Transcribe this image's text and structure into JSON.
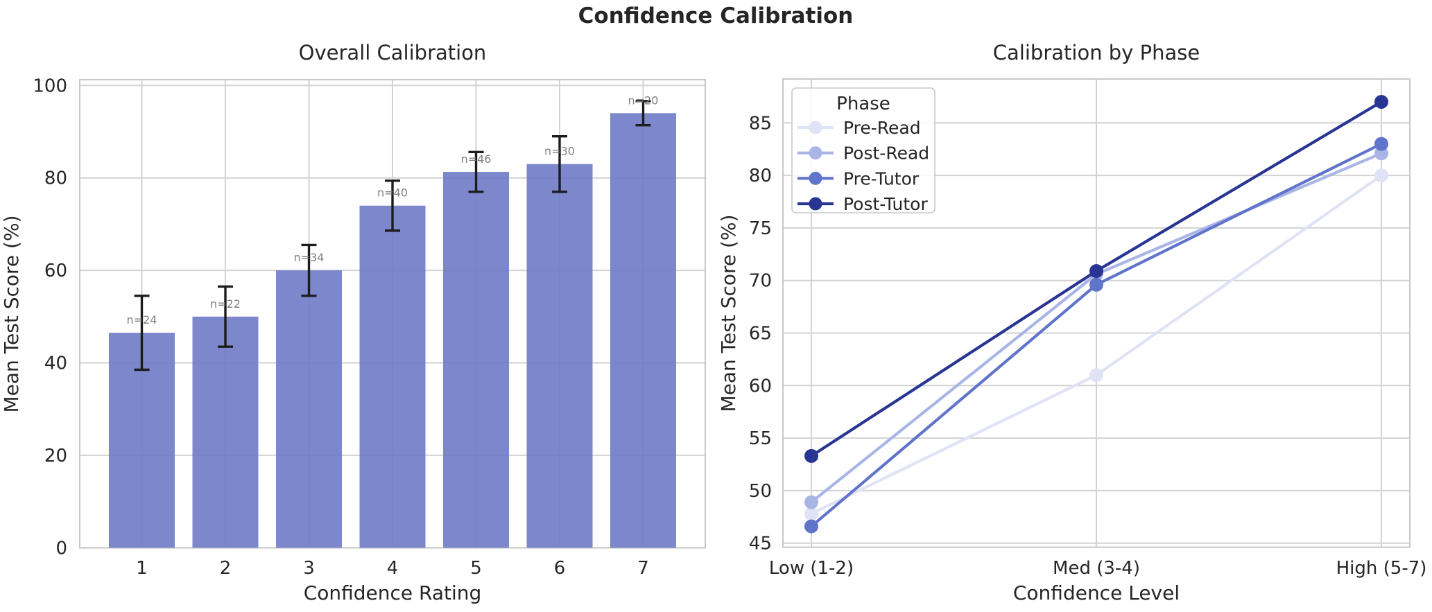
{
  "figure": {
    "title": "Confidence Calibration"
  },
  "colors": {
    "bar_fill": "#6e7ac6",
    "bar_fill_opacity": 0.9,
    "bar_blended": "#7d89cb",
    "error_bar": "#1c1c1c",
    "grid": "#d2d2d2",
    "spine": "#c8c8c8",
    "text": "#262626",
    "muted_text": "#808080",
    "background": "#ffffff"
  },
  "chart_data": [
    {
      "type": "bar",
      "title": "Overall Calibration",
      "xlabel": "Confidence Rating",
      "ylabel": "Mean Test Score (%)",
      "categories": [
        "1",
        "2",
        "3",
        "4",
        "5",
        "6",
        "7"
      ],
      "values": [
        46.5,
        50,
        60,
        74,
        81.3,
        83,
        94
      ],
      "errors": [
        8,
        6.5,
        5.5,
        5.4,
        4.3,
        6,
        2.6
      ],
      "count_labels": [
        "n=24",
        "n=22",
        "n=34",
        "n=40",
        "n=46",
        "n=30",
        "n=20"
      ],
      "yticks": [
        0,
        20,
        40,
        60,
        80,
        100
      ],
      "ylim": [
        0,
        101.2
      ],
      "grid": true,
      "legend": "none"
    },
    {
      "type": "line",
      "title": "Calibration by Phase",
      "xlabel": "Confidence Level",
      "ylabel": "Mean Test Score (%)",
      "categories": [
        "Low (1-2)",
        "Med (3-4)",
        "High (5-7)"
      ],
      "series": [
        {
          "name": "Pre-Read",
          "color": "#dfe3f5",
          "values": [
            47.8,
            61.0,
            80.0
          ]
        },
        {
          "name": "Post-Read",
          "color": "#a9b5e5",
          "values": [
            48.9,
            70.6,
            82.1
          ]
        },
        {
          "name": "Pre-Tutor",
          "color": "#5f74ca",
          "values": [
            46.6,
            69.6,
            83.0
          ]
        },
        {
          "name": "Post-Tutor",
          "color": "#283593",
          "values": [
            53.3,
            70.9,
            87.0
          ]
        }
      ],
      "yticks": [
        45,
        50,
        55,
        60,
        65,
        70,
        75,
        80,
        85
      ],
      "ylim": [
        44.6,
        89.2
      ],
      "legend_title": "Phase",
      "legend_position": "upper left",
      "grid": true
    }
  ]
}
